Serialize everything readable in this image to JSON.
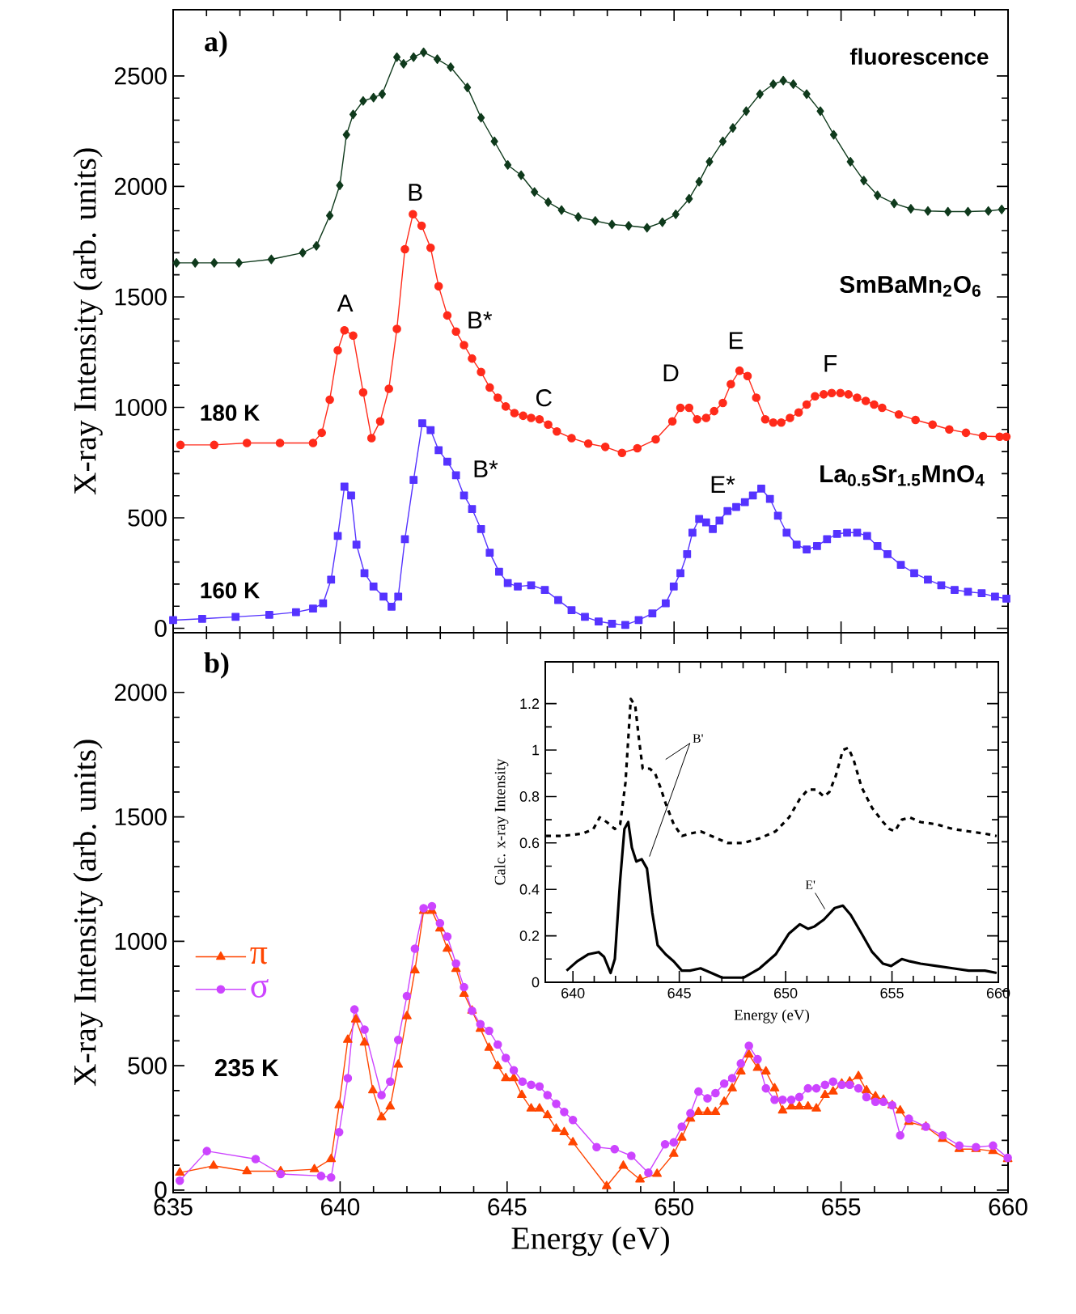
{
  "chart_data": [
    {
      "type": "line",
      "title": "a)",
      "ylabel": "X-ray Intensity (arb. units)",
      "xlim": [
        635,
        660
      ],
      "ylim": [
        -20,
        2800
      ],
      "xticks": [
        635,
        640,
        645,
        650,
        655,
        660
      ],
      "yticks": [
        0,
        500,
        1000,
        1500,
        2000,
        2500
      ],
      "tick_labels": "y",
      "legend": false,
      "series": [
        {
          "name": "fluorescence",
          "color": "#0f3a1c",
          "marker": "diamond",
          "x": [
            635.1,
            635.66,
            636.23,
            636.97,
            637.94,
            638.88,
            639.29,
            639.69,
            639.99,
            640.19,
            640.39,
            640.69,
            641.0,
            641.26,
            641.7,
            641.9,
            642.2,
            642.5,
            642.91,
            643.31,
            643.81,
            644.22,
            644.62,
            645.02,
            645.42,
            645.82,
            646.23,
            646.63,
            647.13,
            647.64,
            648.14,
            648.64,
            649.19,
            649.65,
            650.05,
            650.45,
            650.75,
            651.06,
            651.46,
            651.76,
            652.16,
            652.57,
            652.97,
            653.27,
            653.57,
            653.97,
            654.38,
            654.78,
            655.28,
            655.68,
            656.09,
            656.59,
            657.09,
            657.6,
            658.2,
            658.8,
            659.41,
            659.81
          ],
          "values": [
            1654,
            1654,
            1654,
            1654,
            1670,
            1700,
            1731,
            1868,
            2005,
            2234,
            2326,
            2387,
            2402,
            2418,
            2585,
            2555,
            2585,
            2607,
            2576,
            2540,
            2448,
            2311,
            2204,
            2097,
            2051,
            1975,
            1929,
            1893,
            1862,
            1844,
            1828,
            1822,
            1813,
            1838,
            1874,
            1944,
            2021,
            2112,
            2204,
            2265,
            2341,
            2418,
            2463,
            2479,
            2463,
            2418,
            2341,
            2234,
            2112,
            2027,
            1960,
            1923,
            1899,
            1889,
            1886,
            1886,
            1889,
            1896
          ]
        },
        {
          "name": "180 K",
          "color": "#ff2a1a",
          "marker": "circle",
          "x": [
            635.22,
            636.23,
            637.21,
            638.2,
            639.19,
            639.45,
            639.69,
            639.93,
            640.13,
            640.39,
            640.69,
            640.94,
            641.2,
            641.46,
            641.7,
            641.94,
            642.18,
            642.44,
            642.71,
            642.95,
            643.21,
            643.47,
            643.71,
            643.95,
            644.22,
            644.48,
            644.72,
            644.96,
            645.22,
            645.48,
            645.72,
            645.97,
            646.23,
            646.49,
            646.93,
            647.43,
            647.94,
            648.44,
            648.9,
            649.45,
            649.95,
            650.19,
            650.45,
            650.69,
            650.96,
            651.2,
            651.46,
            651.7,
            651.96,
            652.2,
            652.46,
            652.73,
            652.97,
            653.21,
            653.47,
            653.73,
            653.97,
            654.22,
            654.48,
            654.72,
            654.98,
            655.22,
            655.48,
            655.74,
            655.99,
            656.23,
            656.73,
            657.23,
            657.74,
            658.24,
            658.74,
            659.25,
            659.75,
            659.95
          ],
          "values": [
            830,
            830,
            839,
            839,
            839,
            885,
            1035,
            1258,
            1349,
            1325,
            1068,
            861,
            937,
            1084,
            1355,
            1716,
            1874,
            1822,
            1722,
            1548,
            1416,
            1343,
            1282,
            1221,
            1160,
            1090,
            1044,
            1004,
            974,
            962,
            952,
            946,
            922,
            891,
            861,
            836,
            821,
            794,
            815,
            855,
            937,
            998,
            998,
            946,
            952,
            983,
            1020,
            1105,
            1166,
            1142,
            1044,
            946,
            931,
            931,
            952,
            977,
            1013,
            1050,
            1059,
            1065,
            1065,
            1059,
            1044,
            1029,
            1013,
            998,
            968,
            943,
            922,
            900,
            885,
            870,
            867,
            867
          ]
        },
        {
          "name": "160 K",
          "color": "#5533ff",
          "marker": "square",
          "x": [
            635.0,
            635.87,
            636.87,
            637.88,
            638.68,
            639.19,
            639.49,
            639.73,
            639.93,
            640.13,
            640.33,
            640.49,
            640.73,
            641.0,
            641.3,
            641.54,
            641.74,
            641.94,
            642.2,
            642.46,
            642.71,
            642.95,
            643.21,
            643.47,
            643.71,
            643.95,
            644.22,
            644.48,
            644.76,
            645.02,
            645.32,
            645.72,
            646.13,
            646.53,
            646.93,
            647.33,
            647.74,
            648.14,
            648.54,
            648.94,
            649.35,
            649.75,
            649.99,
            650.19,
            650.39,
            650.55,
            650.75,
            650.96,
            651.16,
            651.36,
            651.6,
            651.86,
            652.12,
            652.36,
            652.61,
            652.87,
            653.11,
            653.37,
            653.67,
            653.97,
            654.28,
            654.58,
            654.88,
            655.18,
            655.48,
            655.78,
            656.09,
            656.39,
            656.79,
            657.19,
            657.6,
            658.0,
            658.4,
            658.8,
            659.21,
            659.61,
            659.95
          ],
          "values": [
            37,
            43,
            52,
            61,
            73,
            89,
            113,
            220,
            418,
            641,
            601,
            379,
            250,
            189,
            143,
            98,
            143,
            403,
            672,
            928,
            897,
            806,
            754,
            693,
            601,
            540,
            449,
            342,
            256,
            205,
            189,
            195,
            174,
            128,
            82,
            52,
            31,
            21,
            15,
            37,
            67,
            113,
            189,
            250,
            336,
            433,
            495,
            479,
            449,
            488,
            531,
            549,
            571,
            601,
            632,
            586,
            510,
            433,
            379,
            357,
            372,
            403,
            427,
            433,
            433,
            418,
            372,
            336,
            287,
            250,
            220,
            195,
            174,
            165,
            159,
            143,
            134
          ]
        }
      ],
      "annotations": [
        "A",
        "B",
        "B*",
        "C",
        "D",
        "E",
        "F",
        "B*",
        "E*",
        "SmBaMn$_{2}$O$_{6}$",
        "La$_{0.5}$Sr$_{1.5}$MnO$_{4}$"
      ]
    },
    {
      "type": "line",
      "title": "b)",
      "xlabel": "Energy (eV)",
      "ylabel": "X-ray Intensity (arb. units)",
      "xlim": [
        635,
        660
      ],
      "ylim": [
        -10,
        2240
      ],
      "xticks": [
        635,
        640,
        645,
        650,
        655,
        660
      ],
      "yticks": [
        0,
        500,
        1000,
        1500,
        2000
      ],
      "legend": "left",
      "series": [
        {
          "name": "π",
          "color": "#ff4500",
          "marker": "triangle",
          "x": [
            635.2,
            636.21,
            637.21,
            638.22,
            639.23,
            639.73,
            639.97,
            640.23,
            640.47,
            640.73,
            640.98,
            641.24,
            641.5,
            641.74,
            642.0,
            642.24,
            642.5,
            642.75,
            642.99,
            643.21,
            643.47,
            643.71,
            643.95,
            644.2,
            644.46,
            644.72,
            644.96,
            645.2,
            645.44,
            645.72,
            645.97,
            646.21,
            646.47,
            646.71,
            646.97,
            647.98,
            648.48,
            648.98,
            649.49,
            649.99,
            650.23,
            650.49,
            650.73,
            651.0,
            651.24,
            651.5,
            651.74,
            652.0,
            652.24,
            652.5,
            652.75,
            653.01,
            653.25,
            653.51,
            653.75,
            654.01,
            654.26,
            654.52,
            654.76,
            655.02,
            655.26,
            655.52,
            655.76,
            656.03,
            656.27,
            656.53,
            656.77,
            657.03,
            657.54,
            658.04,
            658.54,
            659.04,
            659.55,
            659.99
          ],
          "values": [
            70,
            98,
            76,
            76,
            84,
            125,
            341,
            604,
            686,
            593,
            401,
            293,
            336,
            504,
            699,
            883,
            1122,
            1122,
            1051,
            970,
            889,
            789,
            721,
            648,
            572,
            499,
            450,
            450,
            382,
            328,
            328,
            301,
            247,
            233,
            192,
            16,
            98,
            43,
            65,
            146,
            211,
            287,
            314,
            314,
            314,
            355,
            409,
            477,
            545,
            491,
            477,
            409,
            320,
            336,
            336,
            336,
            328,
            382,
            396,
            428,
            436,
            458,
            401,
            377,
            363,
            341,
            320,
            274,
            255,
            206,
            165,
            165,
            157,
            125
          ]
        },
        {
          "name": "σ",
          "color": "#cc44ff",
          "marker": "circle",
          "x": [
            635.2,
            636.01,
            637.47,
            638.22,
            639.43,
            639.73,
            639.97,
            640.23,
            640.43,
            640.73,
            641.24,
            641.5,
            641.74,
            642.0,
            642.24,
            642.5,
            642.75,
            642.99,
            643.21,
            643.47,
            643.71,
            643.95,
            644.2,
            644.46,
            644.72,
            644.96,
            645.2,
            645.46,
            645.72,
            645.97,
            646.21,
            646.47,
            646.71,
            646.97,
            647.68,
            648.22,
            648.72,
            649.23,
            649.73,
            649.99,
            650.23,
            650.49,
            650.73,
            651.0,
            651.24,
            651.5,
            651.74,
            652.0,
            652.24,
            652.5,
            652.75,
            653.01,
            653.25,
            653.51,
            653.75,
            654.01,
            654.26,
            654.52,
            654.76,
            655.02,
            655.26,
            655.52,
            655.76,
            656.03,
            656.27,
            656.53,
            656.77,
            657.03,
            657.54,
            658.04,
            658.54,
            659.04,
            659.55,
            659.99
          ],
          "values": [
            38,
            157,
            125,
            65,
            57,
            51,
            233,
            450,
            726,
            645,
            382,
            436,
            604,
            780,
            970,
            1133,
            1141,
            1073,
            1019,
            911,
            816,
            721,
            667,
            640,
            585,
            531,
            482,
            436,
            423,
            417,
            382,
            347,
            314,
            282,
            173,
            165,
            138,
            70,
            184,
            192,
            255,
            309,
            396,
            369,
            390,
            428,
            450,
            509,
            580,
            526,
            409,
            363,
            363,
            363,
            374,
            409,
            409,
            423,
            436,
            423,
            423,
            409,
            374,
            355,
            355,
            341,
            220,
            287,
            255,
            220,
            179,
            173,
            179,
            130
          ]
        }
      ],
      "annotations": [
        "235 K"
      ]
    },
    {
      "type": "line",
      "xlabel": "Energy (eV)",
      "ylabel": "Calc. x-ray Intensity",
      "xlim": [
        638.7,
        660
      ],
      "ylim": [
        0,
        1.38
      ],
      "xticks": [
        640,
        645,
        650,
        655,
        660
      ],
      "yticks": [
        0,
        0.2,
        0.4,
        0.6,
        0.8,
        1,
        1.2
      ],
      "legend": false,
      "series": [
        {
          "color": "#000000",
          "marker": "none",
          "line_style": "dashed",
          "x": [
            638.74,
            639.45,
            640.45,
            640.96,
            641.26,
            641.59,
            641.97,
            642.22,
            642.47,
            642.72,
            642.93,
            643.1,
            643.28,
            643.61,
            643.86,
            644.11,
            644.36,
            644.74,
            645.12,
            645.5,
            646.0,
            646.51,
            647.26,
            648.02,
            648.78,
            649.53,
            650.16,
            650.67,
            651.05,
            651.43,
            651.8,
            652.06,
            652.36,
            652.69,
            652.94,
            653.19,
            653.57,
            654.07,
            654.58,
            654.88,
            655.13,
            655.46,
            655.84,
            656.34,
            657.1,
            657.86,
            658.61,
            659.37,
            659.92
          ],
          "values": [
            0.63,
            0.63,
            0.64,
            0.66,
            0.71,
            0.69,
            0.66,
            0.68,
            0.86,
            1.22,
            1.19,
            1.05,
            0.92,
            0.92,
            0.9,
            0.84,
            0.77,
            0.68,
            0.63,
            0.64,
            0.65,
            0.63,
            0.6,
            0.6,
            0.62,
            0.65,
            0.71,
            0.79,
            0.83,
            0.83,
            0.8,
            0.82,
            0.89,
            1.0,
            1.01,
            0.96,
            0.84,
            0.75,
            0.69,
            0.66,
            0.65,
            0.7,
            0.71,
            0.69,
            0.68,
            0.66,
            0.65,
            0.64,
            0.63
          ]
        },
        {
          "color": "#000000",
          "marker": "none",
          "line_style": "solid",
          "x": [
            639.7,
            640.2,
            640.71,
            641.21,
            641.46,
            641.77,
            641.97,
            642.22,
            642.42,
            642.6,
            642.77,
            642.98,
            643.23,
            643.48,
            643.73,
            643.98,
            644.36,
            644.74,
            645.12,
            645.5,
            646.0,
            646.51,
            647.01,
            647.52,
            648.02,
            648.78,
            649.53,
            650.16,
            650.67,
            651.05,
            651.35,
            651.8,
            652.31,
            652.69,
            653.06,
            653.57,
            654.07,
            654.58,
            654.96,
            655.46,
            655.84,
            656.34,
            657.1,
            657.86,
            658.61,
            659.37,
            659.92
          ],
          "values": [
            0.05,
            0.09,
            0.12,
            0.13,
            0.11,
            0.04,
            0.1,
            0.44,
            0.66,
            0.69,
            0.58,
            0.52,
            0.53,
            0.49,
            0.3,
            0.16,
            0.12,
            0.09,
            0.05,
            0.05,
            0.06,
            0.04,
            0.02,
            0.02,
            0.02,
            0.06,
            0.12,
            0.21,
            0.25,
            0.23,
            0.24,
            0.27,
            0.32,
            0.33,
            0.29,
            0.21,
            0.13,
            0.08,
            0.07,
            0.1,
            0.09,
            0.08,
            0.07,
            0.06,
            0.05,
            0.05,
            0.04
          ]
        }
      ],
      "annotations": [
        "B'",
        "E'"
      ]
    }
  ]
}
